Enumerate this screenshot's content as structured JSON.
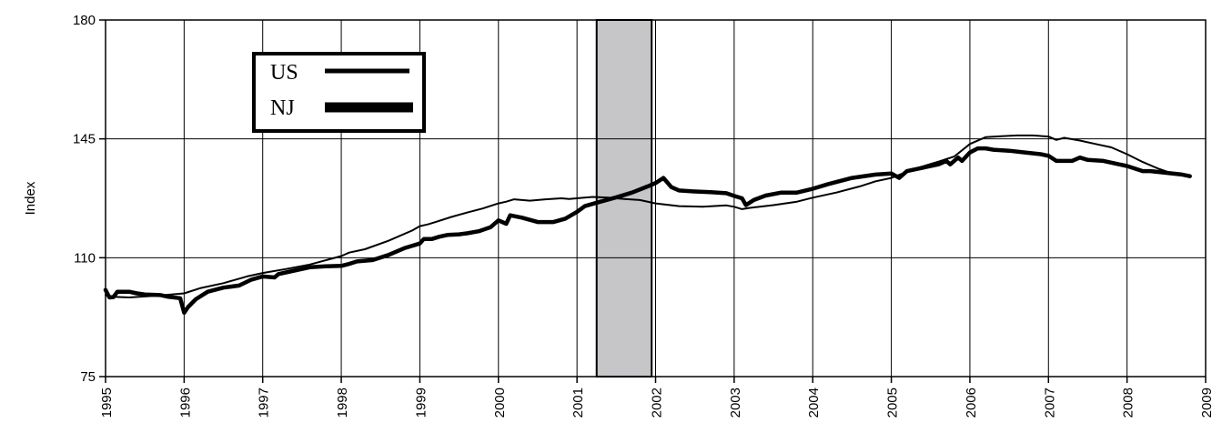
{
  "chart_data": {
    "type": "line",
    "title": "",
    "xlabel": "",
    "ylabel": "Index",
    "xlim": [
      1995,
      2009
    ],
    "ylim": [
      75,
      180
    ],
    "yticks": [
      "75",
      "110",
      "145",
      "180"
    ],
    "xticks": [
      "1995",
      "1996",
      "1997",
      "1998",
      "1999",
      "2000",
      "2001",
      "2002",
      "2003",
      "2004",
      "2005",
      "2006",
      "2007",
      "2008",
      "2009"
    ],
    "grid": true,
    "legend_position": "top-left",
    "shaded_region": [
      2001.25,
      2001.95
    ],
    "series": [
      {
        "name": "US",
        "line_weight": "thin",
        "points": [
          [
            1995.0,
            99
          ],
          [
            1995.1,
            98.5
          ],
          [
            1995.3,
            98.3
          ],
          [
            1995.5,
            98.6
          ],
          [
            1995.7,
            98.9
          ],
          [
            1995.9,
            99.3
          ],
          [
            1996.0,
            99.5
          ],
          [
            1996.2,
            101
          ],
          [
            1996.5,
            102.5
          ],
          [
            1996.8,
            104.5
          ],
          [
            1997.0,
            105.5
          ],
          [
            1997.3,
            106.7
          ],
          [
            1997.6,
            108
          ],
          [
            1998.0,
            110.5
          ],
          [
            1998.1,
            111.5
          ],
          [
            1998.3,
            112.5
          ],
          [
            1998.6,
            115
          ],
          [
            1998.9,
            118
          ],
          [
            1999.0,
            119.3
          ],
          [
            1999.1,
            119.8
          ],
          [
            1999.2,
            120.5
          ],
          [
            1999.4,
            122
          ],
          [
            1999.6,
            123.3
          ],
          [
            1999.8,
            124.5
          ],
          [
            2000.0,
            126
          ],
          [
            2000.1,
            126.5
          ],
          [
            2000.2,
            127.2
          ],
          [
            2000.4,
            126.8
          ],
          [
            2000.6,
            127.2
          ],
          [
            2000.8,
            127.5
          ],
          [
            2000.9,
            127.3
          ],
          [
            2001.0,
            127.5
          ],
          [
            2001.2,
            127.9
          ],
          [
            2001.4,
            127.7
          ],
          [
            2001.6,
            127.3
          ],
          [
            2001.8,
            127
          ],
          [
            2002.0,
            126
          ],
          [
            2002.3,
            125.2
          ],
          [
            2002.6,
            125
          ],
          [
            2002.9,
            125.4
          ],
          [
            2003.0,
            125
          ],
          [
            2003.1,
            124.3
          ],
          [
            2003.2,
            124.7
          ],
          [
            2003.5,
            125.5
          ],
          [
            2003.8,
            126.5
          ],
          [
            2004.0,
            127.7
          ],
          [
            2004.3,
            129.2
          ],
          [
            2004.6,
            131
          ],
          [
            2004.8,
            132.5
          ],
          [
            2005.0,
            133.5
          ],
          [
            2005.3,
            136.2
          ],
          [
            2005.6,
            138.3
          ],
          [
            2005.8,
            139.8
          ],
          [
            2006.0,
            143.5
          ],
          [
            2006.2,
            145.5
          ],
          [
            2006.4,
            145.8
          ],
          [
            2006.6,
            146
          ],
          [
            2006.8,
            146
          ],
          [
            2007.0,
            145.7
          ],
          [
            2007.1,
            144.7
          ],
          [
            2007.2,
            145.3
          ],
          [
            2007.4,
            144.5
          ],
          [
            2007.6,
            143.5
          ],
          [
            2007.8,
            142.5
          ],
          [
            2008.0,
            140.5
          ],
          [
            2008.2,
            138.2
          ],
          [
            2008.4,
            136.2
          ],
          [
            2008.6,
            134.6
          ],
          [
            2008.8,
            134.2
          ]
        ]
      },
      {
        "name": "NJ",
        "line_weight": "thick",
        "points": [
          [
            1995.0,
            100.5
          ],
          [
            1995.05,
            98.3
          ],
          [
            1995.1,
            98.4
          ],
          [
            1995.15,
            100
          ],
          [
            1995.3,
            100
          ],
          [
            1995.4,
            99.5
          ],
          [
            1995.5,
            99.2
          ],
          [
            1995.7,
            99
          ],
          [
            1995.8,
            98.5
          ],
          [
            1995.95,
            98.1
          ],
          [
            1996.0,
            93.8
          ],
          [
            1996.05,
            95.5
          ],
          [
            1996.15,
            97.8
          ],
          [
            1996.3,
            100
          ],
          [
            1996.5,
            101.2
          ],
          [
            1996.7,
            101.8
          ],
          [
            1996.85,
            103.5
          ],
          [
            1997.0,
            104.5
          ],
          [
            1997.15,
            104.2
          ],
          [
            1997.2,
            105.2
          ],
          [
            1997.4,
            106.2
          ],
          [
            1997.6,
            107.2
          ],
          [
            1997.8,
            107.5
          ],
          [
            1998.0,
            107.6
          ],
          [
            1998.1,
            108.2
          ],
          [
            1998.2,
            108.9
          ],
          [
            1998.4,
            109.3
          ],
          [
            1998.6,
            110.8
          ],
          [
            1998.8,
            112.8
          ],
          [
            1999.0,
            114.2
          ],
          [
            1999.05,
            115.5
          ],
          [
            1999.15,
            115.5
          ],
          [
            1999.25,
            116.2
          ],
          [
            1999.35,
            116.7
          ],
          [
            1999.5,
            116.9
          ],
          [
            1999.6,
            117.2
          ],
          [
            1999.75,
            117.8
          ],
          [
            1999.9,
            119
          ],
          [
            2000.0,
            121
          ],
          [
            2000.1,
            120
          ],
          [
            2000.15,
            122.5
          ],
          [
            2000.3,
            121.8
          ],
          [
            2000.5,
            120.5
          ],
          [
            2000.7,
            120.5
          ],
          [
            2000.85,
            121.5
          ],
          [
            2001.0,
            123.5
          ],
          [
            2001.1,
            125.2
          ],
          [
            2001.3,
            126.5
          ],
          [
            2001.5,
            127.8
          ],
          [
            2001.7,
            129.2
          ],
          [
            2001.9,
            131
          ],
          [
            2002.0,
            132
          ],
          [
            2002.1,
            133.5
          ],
          [
            2002.2,
            130.8
          ],
          [
            2002.3,
            129.8
          ],
          [
            2002.5,
            129.5
          ],
          [
            2002.7,
            129.3
          ],
          [
            2002.9,
            129
          ],
          [
            2003.0,
            128.2
          ],
          [
            2003.1,
            127.5
          ],
          [
            2003.15,
            125.5
          ],
          [
            2003.25,
            127
          ],
          [
            2003.4,
            128.3
          ],
          [
            2003.6,
            129.2
          ],
          [
            2003.8,
            129.2
          ],
          [
            2004.0,
            130.3
          ],
          [
            2004.2,
            131.7
          ],
          [
            2004.5,
            133.5
          ],
          [
            2004.8,
            134.5
          ],
          [
            2005.0,
            134.8
          ],
          [
            2005.1,
            133.5
          ],
          [
            2005.2,
            135.5
          ],
          [
            2005.4,
            136.5
          ],
          [
            2005.6,
            137.5
          ],
          [
            2005.7,
            138.5
          ],
          [
            2005.75,
            137.5
          ],
          [
            2005.85,
            139.5
          ],
          [
            2005.9,
            138.5
          ],
          [
            2006.0,
            141
          ],
          [
            2006.1,
            142.2
          ],
          [
            2006.2,
            142.2
          ],
          [
            2006.3,
            141.8
          ],
          [
            2006.5,
            141.5
          ],
          [
            2006.7,
            141
          ],
          [
            2006.9,
            140.5
          ],
          [
            2007.0,
            140
          ],
          [
            2007.1,
            138.5
          ],
          [
            2007.3,
            138.5
          ],
          [
            2007.4,
            139.5
          ],
          [
            2007.5,
            138.8
          ],
          [
            2007.7,
            138.5
          ],
          [
            2007.9,
            137.5
          ],
          [
            2008.0,
            137
          ],
          [
            2008.2,
            135.5
          ],
          [
            2008.3,
            135.5
          ],
          [
            2008.5,
            135
          ],
          [
            2008.7,
            134.5
          ],
          [
            2008.8,
            134
          ]
        ]
      }
    ]
  }
}
